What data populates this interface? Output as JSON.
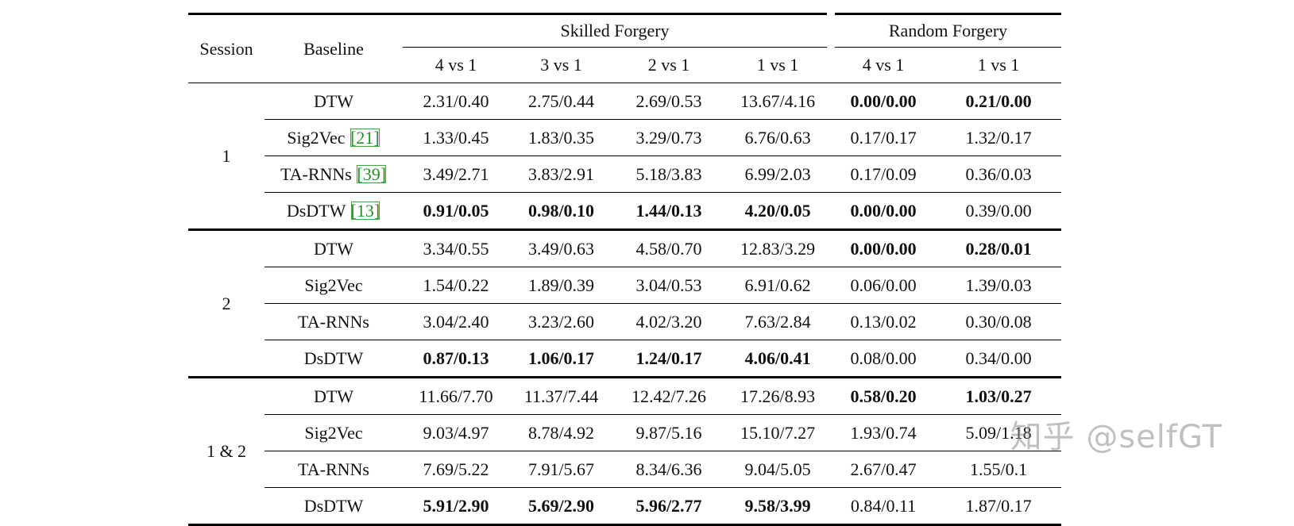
{
  "header": {
    "session": "Session",
    "baseline": "Baseline",
    "skilled": "Skilled Forgery",
    "random": "Random Forgery",
    "skilled_cols": [
      "4 vs 1",
      "3 vs 1",
      "2 vs 1",
      "1 vs 1"
    ],
    "random_cols": [
      "4 vs 1",
      "1 vs 1"
    ]
  },
  "groups": [
    {
      "session": "1",
      "rows": [
        {
          "name": "DTW",
          "cite": "",
          "values": [
            "2.31/0.40",
            "2.75/0.44",
            "2.69/0.53",
            "13.67/4.16",
            "0.00/0.00",
            "0.21/0.00"
          ],
          "bold": [
            false,
            false,
            false,
            false,
            true,
            true
          ]
        },
        {
          "name": "Sig2Vec",
          "cite": "[21]",
          "values": [
            "1.33/0.45",
            "1.83/0.35",
            "3.29/0.73",
            "6.76/0.63",
            "0.17/0.17",
            "1.32/0.17"
          ],
          "bold": [
            false,
            false,
            false,
            false,
            false,
            false
          ]
        },
        {
          "name": "TA-RNNs",
          "cite": "[39]",
          "values": [
            "3.49/2.71",
            "3.83/2.91",
            "5.18/3.83",
            "6.99/2.03",
            "0.17/0.09",
            "0.36/0.03"
          ],
          "bold": [
            false,
            false,
            false,
            false,
            false,
            false
          ]
        },
        {
          "name": "DsDTW",
          "cite": "[13]",
          "values": [
            "0.91/0.05",
            "0.98/0.10",
            "1.44/0.13",
            "4.20/0.05",
            "0.00/0.00",
            "0.39/0.00"
          ],
          "bold": [
            true,
            true,
            true,
            true,
            true,
            false
          ]
        }
      ]
    },
    {
      "session": "2",
      "rows": [
        {
          "name": "DTW",
          "cite": "",
          "values": [
            "3.34/0.55",
            "3.49/0.63",
            "4.58/0.70",
            "12.83/3.29",
            "0.00/0.00",
            "0.28/0.01"
          ],
          "bold": [
            false,
            false,
            false,
            false,
            true,
            true
          ]
        },
        {
          "name": "Sig2Vec",
          "cite": "",
          "values": [
            "1.54/0.22",
            "1.89/0.39",
            "3.04/0.53",
            "6.91/0.62",
            "0.06/0.00",
            "1.39/0.03"
          ],
          "bold": [
            false,
            false,
            false,
            false,
            false,
            false
          ]
        },
        {
          "name": "TA-RNNs",
          "cite": "",
          "values": [
            "3.04/2.40",
            "3.23/2.60",
            "4.02/3.20",
            "7.63/2.84",
            "0.13/0.02",
            "0.30/0.08"
          ],
          "bold": [
            false,
            false,
            false,
            false,
            false,
            false
          ]
        },
        {
          "name": "DsDTW",
          "cite": "",
          "values": [
            "0.87/0.13",
            "1.06/0.17",
            "1.24/0.17",
            "4.06/0.41",
            "0.08/0.00",
            "0.34/0.00"
          ],
          "bold": [
            true,
            true,
            true,
            true,
            false,
            false
          ]
        }
      ]
    },
    {
      "session": "1 & 2",
      "rows": [
        {
          "name": "DTW",
          "cite": "",
          "values": [
            "11.66/7.70",
            "11.37/7.44",
            "12.42/7.26",
            "17.26/8.93",
            "0.58/0.20",
            "1.03/0.27"
          ],
          "bold": [
            false,
            false,
            false,
            false,
            true,
            true
          ]
        },
        {
          "name": "Sig2Vec",
          "cite": "",
          "values": [
            "9.03/4.97",
            "8.78/4.92",
            "9.87/5.16",
            "15.10/7.27",
            "1.93/0.74",
            "5.09/1.18"
          ],
          "bold": [
            false,
            false,
            false,
            false,
            false,
            false
          ]
        },
        {
          "name": "TA-RNNs",
          "cite": "",
          "values": [
            "7.69/5.22",
            "7.91/5.67",
            "8.34/6.36",
            "9.04/5.05",
            "2.67/0.47",
            "1.55/0.1"
          ],
          "bold": [
            false,
            false,
            false,
            false,
            false,
            false
          ]
        },
        {
          "name": "DsDTW",
          "cite": "",
          "values": [
            "5.91/2.90",
            "5.69/2.90",
            "5.96/2.77",
            "9.58/3.99",
            "0.84/0.11",
            "1.87/0.17"
          ],
          "bold": [
            true,
            true,
            true,
            true,
            false,
            false
          ]
        }
      ]
    }
  ],
  "watermark": "知乎 @selfGT"
}
